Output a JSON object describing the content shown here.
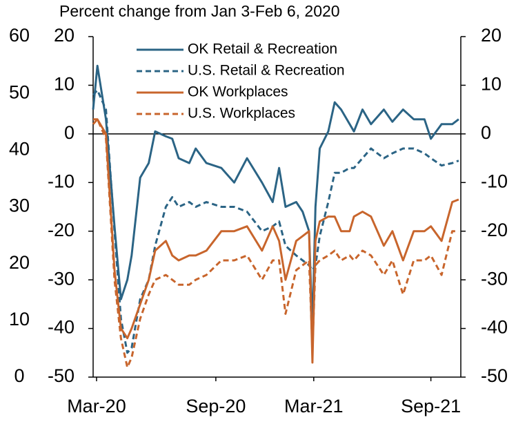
{
  "chart_data": {
    "type": "line",
    "title": "Percent change from Jan 3-Feb 6, 2020",
    "x": [
      0,
      1,
      3,
      5,
      6.5,
      8,
      9,
      11,
      13,
      14.5,
      17,
      18.5,
      20,
      22.5,
      24,
      26.5,
      30,
      33,
      36,
      39.5,
      42,
      43.5,
      45,
      47.5,
      49,
      50.5,
      51.3,
      52,
      53,
      55,
      56.5,
      58,
      60,
      61,
      63,
      65,
      68,
      70,
      72.5,
      75,
      77.5,
      79,
      81.5,
      84,
      85.5
    ],
    "xlim": [
      0,
      86
    ],
    "xticks": [
      {
        "value": 0.8,
        "label": "Mar-20"
      },
      {
        "value": 28.7,
        "label": "Sep-20"
      },
      {
        "value": 51.6,
        "label": "Mar-21"
      },
      {
        "value": 79,
        "label": "Sep-21"
      }
    ],
    "ylim": [
      -50,
      20
    ],
    "yticks": [
      -50,
      -40,
      -30,
      -20,
      -10,
      0,
      10,
      20
    ],
    "y2lim": [
      -50,
      20
    ],
    "y2ticks": [
      -50,
      -40,
      -30,
      -20,
      -10,
      0,
      10,
      20
    ],
    "y3lim": [
      0,
      60
    ],
    "y3ticks": [
      0,
      10,
      20,
      30,
      40,
      50,
      60
    ],
    "series": [
      {
        "name": "OK Retail & Recreation",
        "color": "#2b6485",
        "dash": false,
        "values": [
          5,
          14,
          3,
          -19,
          -34,
          -30,
          -25,
          -9,
          -6,
          0.5,
          -0.5,
          -1,
          -5,
          -6,
          -3,
          -6,
          -7,
          -10,
          -5,
          -10,
          -14,
          -7,
          -15,
          -14,
          -16,
          -20,
          -40,
          -15,
          -3,
          0.5,
          6.5,
          5,
          2,
          0.5,
          5,
          2,
          5,
          2.5,
          5,
          3,
          3,
          -1,
          2,
          2,
          3
        ]
      },
      {
        "name": "U.S. Retail & Recreation",
        "color": "#2b6485",
        "dash": true,
        "values": [
          8,
          9,
          5,
          -20,
          -38,
          -45,
          -44,
          -34,
          -30,
          -23,
          -15,
          -13,
          -15,
          -14,
          -15,
          -14,
          -15,
          -15,
          -16,
          -20,
          -19,
          -18,
          -23,
          -25,
          -26,
          -27,
          -28,
          -27,
          -21,
          -14,
          -8,
          -8,
          -7,
          -7,
          -5,
          -3,
          -5,
          -4,
          -3,
          -3,
          -4,
          -5,
          -6.5,
          -6,
          -5.5
        ]
      },
      {
        "name": "OK Workplaces",
        "color": "#c8652c",
        "dash": false,
        "values": [
          3,
          3,
          0,
          -28,
          -40,
          -42,
          -40,
          -35,
          -30,
          -24,
          -22,
          -25,
          -26,
          -25,
          -25,
          -24,
          -20,
          -20,
          -19,
          -24,
          -19,
          -22,
          -30,
          -22,
          -21,
          -20,
          -47,
          -22,
          -18,
          -17,
          -17,
          -20,
          -20,
          -17,
          -16,
          -17,
          -23,
          -20,
          -26,
          -20,
          -20,
          -19,
          -22,
          -14,
          -13.5
        ]
      },
      {
        "name": "U.S. Workplaces",
        "color": "#c8652c",
        "dash": true,
        "values": [
          2,
          3,
          -1,
          -30,
          -42,
          -48,
          -46,
          -38,
          -33,
          -30,
          -29,
          -30,
          -31,
          -31,
          -30,
          -29,
          -26,
          -26,
          -25,
          -30,
          -26,
          -26,
          -37,
          -28,
          -27,
          -26,
          -44,
          -27,
          -26,
          -25,
          -24,
          -26,
          -25,
          -26,
          -24,
          -25,
          -29,
          -26,
          -33,
          -26,
          -26,
          -25,
          -29,
          -20,
          -20
        ]
      }
    ]
  }
}
